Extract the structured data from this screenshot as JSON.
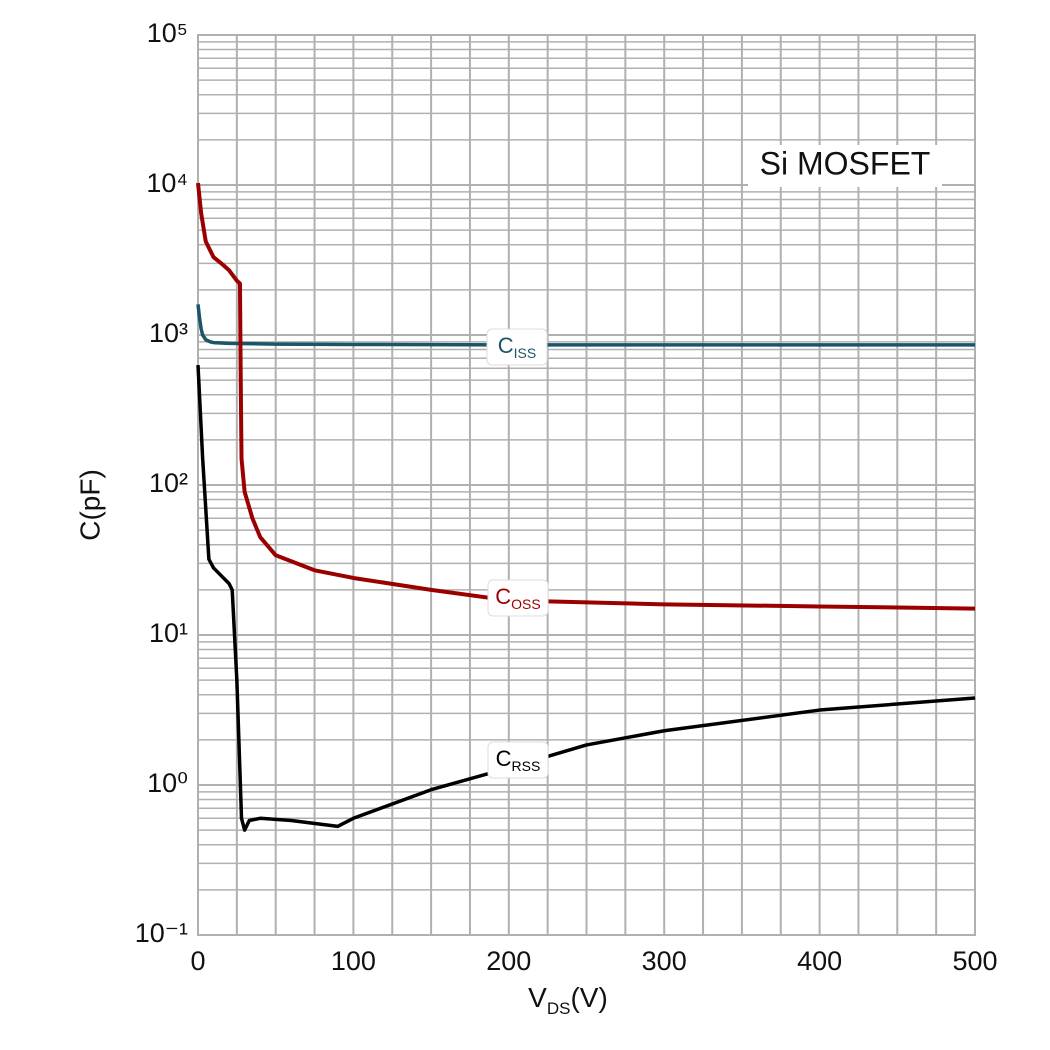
{
  "chart_data": {
    "type": "line",
    "annotation": "Si MOSFET",
    "ylabel": "C(pF)",
    "xlabel": {
      "text": "V",
      "subscript": "DS",
      "suffix": "(V)"
    },
    "log_y": true,
    "grid": true,
    "xlim": [
      0,
      500
    ],
    "xticks": [
      0,
      100,
      200,
      300,
      400,
      500
    ],
    "x_minor_ticks": [
      25,
      50,
      75,
      125,
      150,
      175,
      225,
      250,
      275,
      325,
      350,
      375,
      425,
      450,
      475
    ],
    "ylim": [
      0.1,
      100000
    ],
    "yticks": [
      {
        "value": 0.1,
        "label": "10⁻¹"
      },
      {
        "value": 1,
        "label": "10⁰"
      },
      {
        "value": 10,
        "label": "10¹"
      },
      {
        "value": 100,
        "label": "10²"
      },
      {
        "value": 1000,
        "label": "10³"
      },
      {
        "value": 10000,
        "label": "10⁴"
      },
      {
        "value": 100000,
        "label": "10⁵"
      }
    ],
    "series": [
      {
        "name": "C",
        "name_sub": "ISS",
        "color": "#1b5569",
        "x": [
          0,
          1,
          2,
          3,
          5,
          8,
          10,
          20,
          50,
          100,
          200,
          300,
          400,
          500
        ],
        "values": [
          1600,
          1300,
          1100,
          1000,
          930,
          900,
          890,
          880,
          870,
          865,
          860,
          860,
          860,
          860
        ]
      },
      {
        "name": "C",
        "name_sub": "OSS",
        "color": "#9b0000",
        "x": [
          0,
          2,
          5,
          10,
          15,
          20,
          25,
          27,
          27.5,
          28,
          30,
          35,
          40,
          50,
          75,
          100,
          150,
          200,
          300,
          400,
          500
        ],
        "values": [
          10300,
          6500,
          4200,
          3300,
          3000,
          2700,
          2300,
          2200,
          500,
          150,
          90,
          60,
          45,
          34,
          27,
          24,
          20,
          17,
          16,
          15.5,
          15
        ]
      },
      {
        "name": "C",
        "name_sub": "RSS",
        "color": "#000000",
        "x": [
          0,
          3,
          7,
          10,
          20,
          22,
          25,
          28,
          30,
          33,
          40,
          60,
          90,
          100,
          150,
          200,
          250,
          300,
          400,
          500
        ],
        "values": [
          630,
          150,
          32,
          28,
          22,
          20,
          5,
          0.6,
          0.5,
          0.58,
          0.6,
          0.58,
          0.53,
          0.6,
          0.93,
          1.3,
          1.85,
          2.3,
          3.16,
          3.8
        ]
      }
    ]
  }
}
